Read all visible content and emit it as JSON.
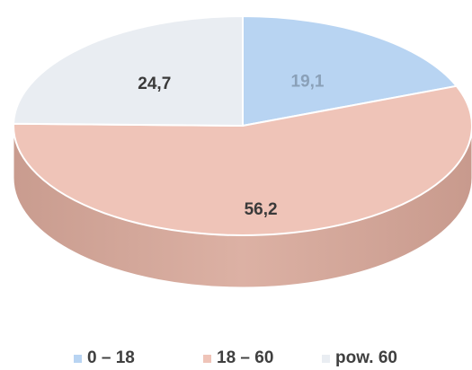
{
  "chart_data": {
    "type": "pie",
    "style": "3d",
    "categories": [
      "0 – 18",
      "18 – 60",
      "pow. 60"
    ],
    "values": [
      19.1,
      56.2,
      24.7
    ],
    "data_labels": [
      "19,1",
      "56,2",
      "24,7"
    ],
    "colors": [
      "#b8d4f2",
      "#efc4b8",
      "#e9edf2"
    ],
    "label_colors": [
      "#8aa0b8",
      "#3a3a3a",
      "#3a3a3a"
    ],
    "legend_position": "bottom",
    "start_angle_deg": 0,
    "direction": "clockwise"
  }
}
